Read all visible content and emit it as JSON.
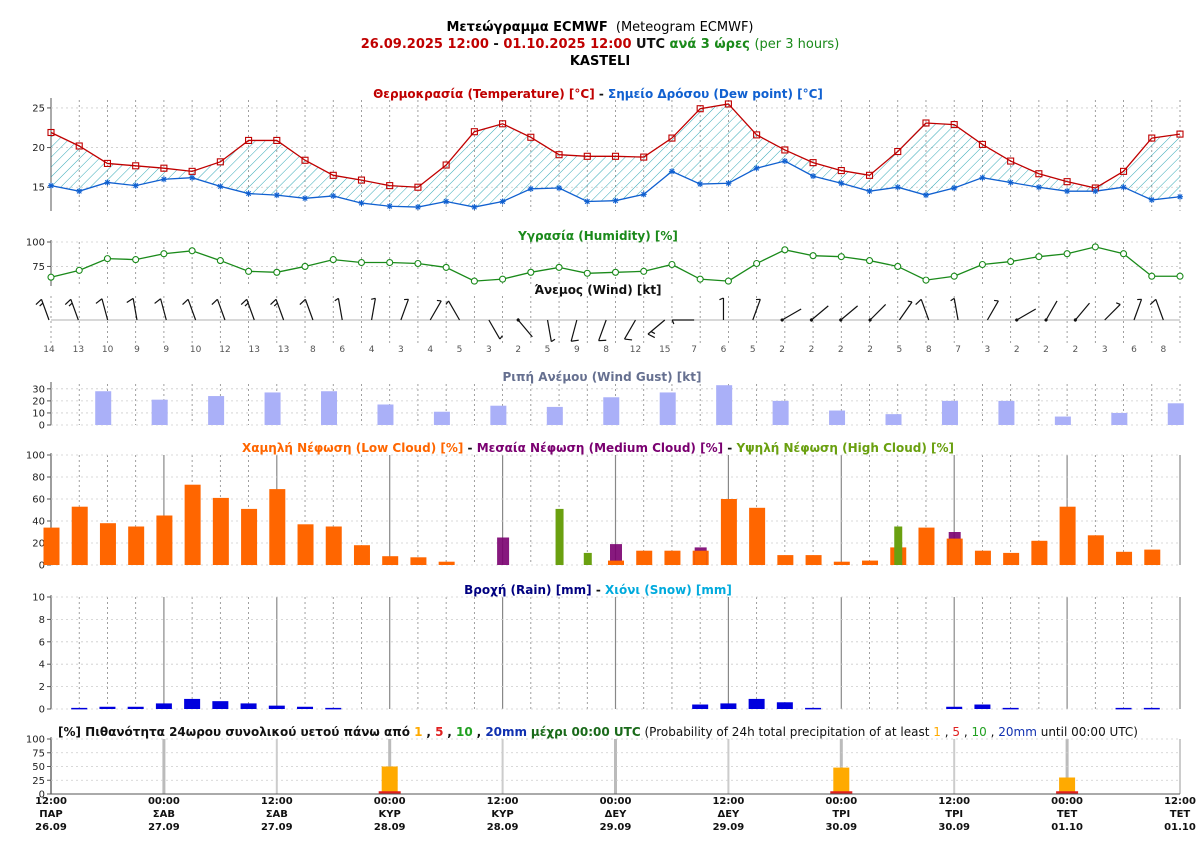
{
  "header": {
    "title_gr": "Μετεώγραμμα ECMWF",
    "title_en": "(Meteogram ECMWF)",
    "range_from": "26.09.2025 12:00",
    "range_sep": " - ",
    "range_to": "01.10.2025 12:00",
    "range_utc": " UTC ",
    "step_gr": "ανά 3 ώρες",
    "step_en": " (per 3 hours)",
    "location": "KASTELI"
  },
  "colors": {
    "temp": "#c00000",
    "dew": "#1060d0",
    "humidity": "#1a8a1a",
    "gust": "#aab0f8",
    "low_cloud": "#ff6600",
    "mid_cloud": "#7a0070",
    "high_cloud": "#6aa010",
    "rain": "#0000dd",
    "snow": "#00aadd",
    "prob_1": "#ffaa00",
    "prob_5": "#e02020",
    "prob_10": "#20a020",
    "prob_20": "#1030b0"
  },
  "x_axis": {
    "ticks": [
      {
        "time": "12:00",
        "day": "ΠΑΡ",
        "date": "26.09"
      },
      {
        "time": "00:00",
        "day": "ΣΑΒ",
        "date": "27.09"
      },
      {
        "time": "12:00",
        "day": "ΣΑΒ",
        "date": "27.09"
      },
      {
        "time": "00:00",
        "day": "ΚΥΡ",
        "date": "28.09"
      },
      {
        "time": "12:00",
        "day": "ΚΥΡ",
        "date": "28.09"
      },
      {
        "time": "00:00",
        "day": "ΔΕΥ",
        "date": "29.09"
      },
      {
        "time": "12:00",
        "day": "ΔΕΥ",
        "date": "29.09"
      },
      {
        "time": "00:00",
        "day": "ΤΡΙ",
        "date": "30.09"
      },
      {
        "time": "12:00",
        "day": "ΤΡΙ",
        "date": "30.09"
      },
      {
        "time": "00:00",
        "day": "ΤΕΤ",
        "date": "01.10"
      },
      {
        "time": "12:00",
        "day": "ΤΕΤ",
        "date": "01.10"
      }
    ]
  },
  "chart_data": [
    {
      "type": "line",
      "panel": "temperature",
      "title_parts": [
        "Θερμοκρασία (Temperature) [°C]",
        " - ",
        "Σημείο Δρόσου (Dew point) [°C]"
      ],
      "yticks": [
        15,
        20,
        25
      ],
      "ylim": [
        12,
        26
      ],
      "series": [
        {
          "name": "Θερμοκρασία (Temperature) [°C]",
          "values": [
            21.9,
            20.2,
            18.0,
            17.7,
            17.4,
            17.0,
            18.2,
            20.9,
            20.9,
            18.4,
            16.5,
            15.9,
            15.2,
            15.0,
            17.8,
            22.0,
            23.0,
            21.3,
            19.1,
            18.9,
            18.9,
            18.8,
            21.2,
            24.9,
            25.5,
            21.6,
            19.7,
            18.1,
            17.1,
            16.5,
            19.5,
            23.1,
            22.9,
            20.4,
            18.3,
            16.7,
            15.7,
            14.9,
            17.0,
            21.2,
            21.7
          ]
        },
        {
          "name": "Σημείο Δρόσου (Dew point) [°C]",
          "values": [
            15.2,
            14.5,
            15.6,
            15.2,
            16.0,
            16.2,
            15.1,
            14.2,
            14.0,
            13.6,
            13.9,
            13.0,
            12.6,
            12.5,
            13.2,
            12.5,
            13.2,
            14.8,
            14.9,
            13.2,
            13.3,
            14.1,
            17.0,
            15.4,
            15.5,
            17.4,
            18.3,
            16.4,
            15.5,
            14.5,
            15.0,
            14.0,
            14.9,
            16.2,
            15.6,
            15.0,
            14.5,
            14.5,
            15.0,
            13.4,
            13.8
          ]
        }
      ]
    },
    {
      "type": "line",
      "panel": "humidity",
      "title": "Υγρασία (Humidity) [%]",
      "yticks": [
        75,
        100
      ],
      "ylim": [
        55,
        100
      ],
      "series": [
        {
          "name": "Υγρασία (Humidity) [%]",
          "values": [
            64,
            71,
            83,
            82,
            88,
            91,
            81,
            70,
            69,
            75,
            82,
            79,
            79,
            78,
            74,
            60,
            62,
            69,
            74,
            68,
            69,
            70,
            77,
            62,
            60,
            78,
            92,
            86,
            85,
            81,
            75,
            61,
            65,
            77,
            80,
            85,
            88,
            95,
            88,
            65,
            65
          ]
        }
      ]
    },
    {
      "type": "table",
      "panel": "wind",
      "title": "Άνεμος (Wind) [kt]",
      "speeds": [
        14,
        13,
        10,
        9,
        9,
        10,
        12,
        13,
        13,
        8,
        6,
        4,
        3,
        4,
        5,
        3,
        2,
        5,
        9,
        8,
        12,
        15,
        7,
        6,
        5,
        2,
        2,
        2,
        2,
        5,
        8,
        7,
        3,
        2,
        2,
        2,
        3,
        6,
        8
      ],
      "directions_deg": [
        340,
        340,
        345,
        350,
        345,
        340,
        340,
        340,
        340,
        340,
        350,
        10,
        20,
        30,
        330,
        150,
        140,
        170,
        195,
        200,
        210,
        230,
        270,
        0,
        20,
        60,
        50,
        50,
        45,
        35,
        340,
        350,
        30,
        60,
        30,
        40,
        45,
        20,
        340
      ]
    },
    {
      "type": "bar",
      "panel": "wind_gust",
      "title": "Ριπή Ανέμου (Wind Gust) [kt]",
      "yticks": [
        0,
        10,
        20,
        30
      ],
      "ylim": [
        0,
        34
      ],
      "values": [
        28,
        21,
        24,
        27,
        28,
        17,
        11,
        16,
        15,
        23,
        27,
        33,
        20,
        12,
        9,
        20,
        20,
        7,
        10,
        18
      ]
    },
    {
      "type": "bar",
      "panel": "clouds",
      "title_parts": [
        "Χαμηλή Νέφωση (Low Cloud) [%]",
        " - ",
        "Μεσαία Νέφωση (Medium Cloud) [%]",
        " - ",
        "Υψηλή Νέφωση (High Cloud) [%]"
      ],
      "yticks": [
        0,
        20,
        40,
        60,
        80,
        100
      ],
      "ylim": [
        0,
        100
      ],
      "series": [
        {
          "name": "Χαμηλή Νέφωση (Low Cloud) [%]",
          "values": [
            34,
            53,
            38,
            35,
            45,
            73,
            61,
            51,
            69,
            37,
            35,
            18,
            8,
            7,
            3,
            0,
            0,
            0,
            0,
            0,
            4,
            13,
            13,
            13,
            60,
            52,
            9,
            9,
            3,
            4,
            16,
            34,
            24,
            13,
            11,
            22,
            53,
            27,
            12,
            14
          ]
        },
        {
          "name": "Μεσαία Νέφωση (Medium Cloud) [%]",
          "values": [
            0,
            0,
            0,
            0,
            0,
            0,
            0,
            0,
            0,
            0,
            0,
            0,
            0,
            0,
            0,
            0,
            25,
            0,
            0,
            0,
            19,
            0,
            0,
            16,
            0,
            0,
            0,
            0,
            0,
            0,
            0,
            0,
            30,
            0,
            0,
            0,
            0,
            0,
            0,
            0
          ]
        },
        {
          "name": "Υψηλή Νέφωση (High Cloud) [%]",
          "values": [
            0,
            0,
            0,
            0,
            0,
            0,
            0,
            0,
            0,
            0,
            0,
            0,
            0,
            0,
            0,
            0,
            0,
            0,
            51,
            11,
            0,
            0,
            0,
            0,
            0,
            0,
            0,
            0,
            0,
            0,
            35,
            0,
            0,
            0,
            0,
            0,
            0,
            0,
            0,
            0
          ]
        }
      ]
    },
    {
      "type": "bar",
      "panel": "precipitation",
      "title_parts": [
        "Βροχή (Rain) [mm]",
        " - ",
        "Χιόνι (Snow) [mm]"
      ],
      "yticks": [
        0,
        2,
        4,
        6,
        8,
        10
      ],
      "ylim": [
        0,
        10
      ],
      "series": [
        {
          "name": "Βροχή (Rain) [mm]",
          "values": [
            0.1,
            0.2,
            0.2,
            0.5,
            0.9,
            0.7,
            0.5,
            0.3,
            0.2,
            0.1,
            0,
            0,
            0,
            0,
            0,
            0,
            0,
            0,
            0,
            0,
            0,
            0,
            0.4,
            0.5,
            0.9,
            0.6,
            0.1,
            0,
            0,
            0,
            0,
            0.2,
            0.4,
            0.1,
            0,
            0,
            0,
            0.1,
            0.1,
            0
          ]
        },
        {
          "name": "Χιόνι (Snow) [mm]",
          "values": [
            0,
            0,
            0,
            0,
            0,
            0,
            0,
            0,
            0,
            0,
            0,
            0,
            0,
            0,
            0,
            0,
            0,
            0,
            0,
            0,
            0,
            0,
            0,
            0,
            0,
            0,
            0,
            0,
            0,
            0,
            0,
            0,
            0,
            0,
            0,
            0,
            0,
            0,
            0,
            0
          ]
        }
      ]
    },
    {
      "type": "bar",
      "panel": "probability",
      "title_parts": {
        "gr_pre": "[%] Πιθανότητα 24ωρου συνολικού υετού πάνω από ",
        "t1": "1",
        "c1": ", ",
        "t5": "5",
        "c2": ", ",
        "t10": "10",
        "c3": ", ",
        "t20": "20mm",
        "gr_post": " μέχρι 00:00 UTC",
        "en_pre": " (Probability of 24h total precipitation of at least ",
        "e1": "1",
        "ec1": ", ",
        "e5": "5",
        "ec2": ", ",
        "e10": "10",
        "ec3": ", ",
        "e20": "20mm",
        "en_post": " until 00:00 UTC)"
      },
      "yticks": [
        0,
        25,
        50,
        75,
        100
      ],
      "ylim": [
        0,
        100
      ],
      "categories": [
        "28.09",
        "30.09",
        "01.10"
      ],
      "series": [
        {
          "name": "1",
          "values": [
            50,
            48,
            30
          ]
        },
        {
          "name": "5",
          "values": [
            5,
            5,
            5
          ]
        },
        {
          "name": "10",
          "values": [
            0,
            0,
            0
          ]
        },
        {
          "name": "20",
          "values": [
            0,
            0,
            0
          ]
        }
      ]
    }
  ]
}
